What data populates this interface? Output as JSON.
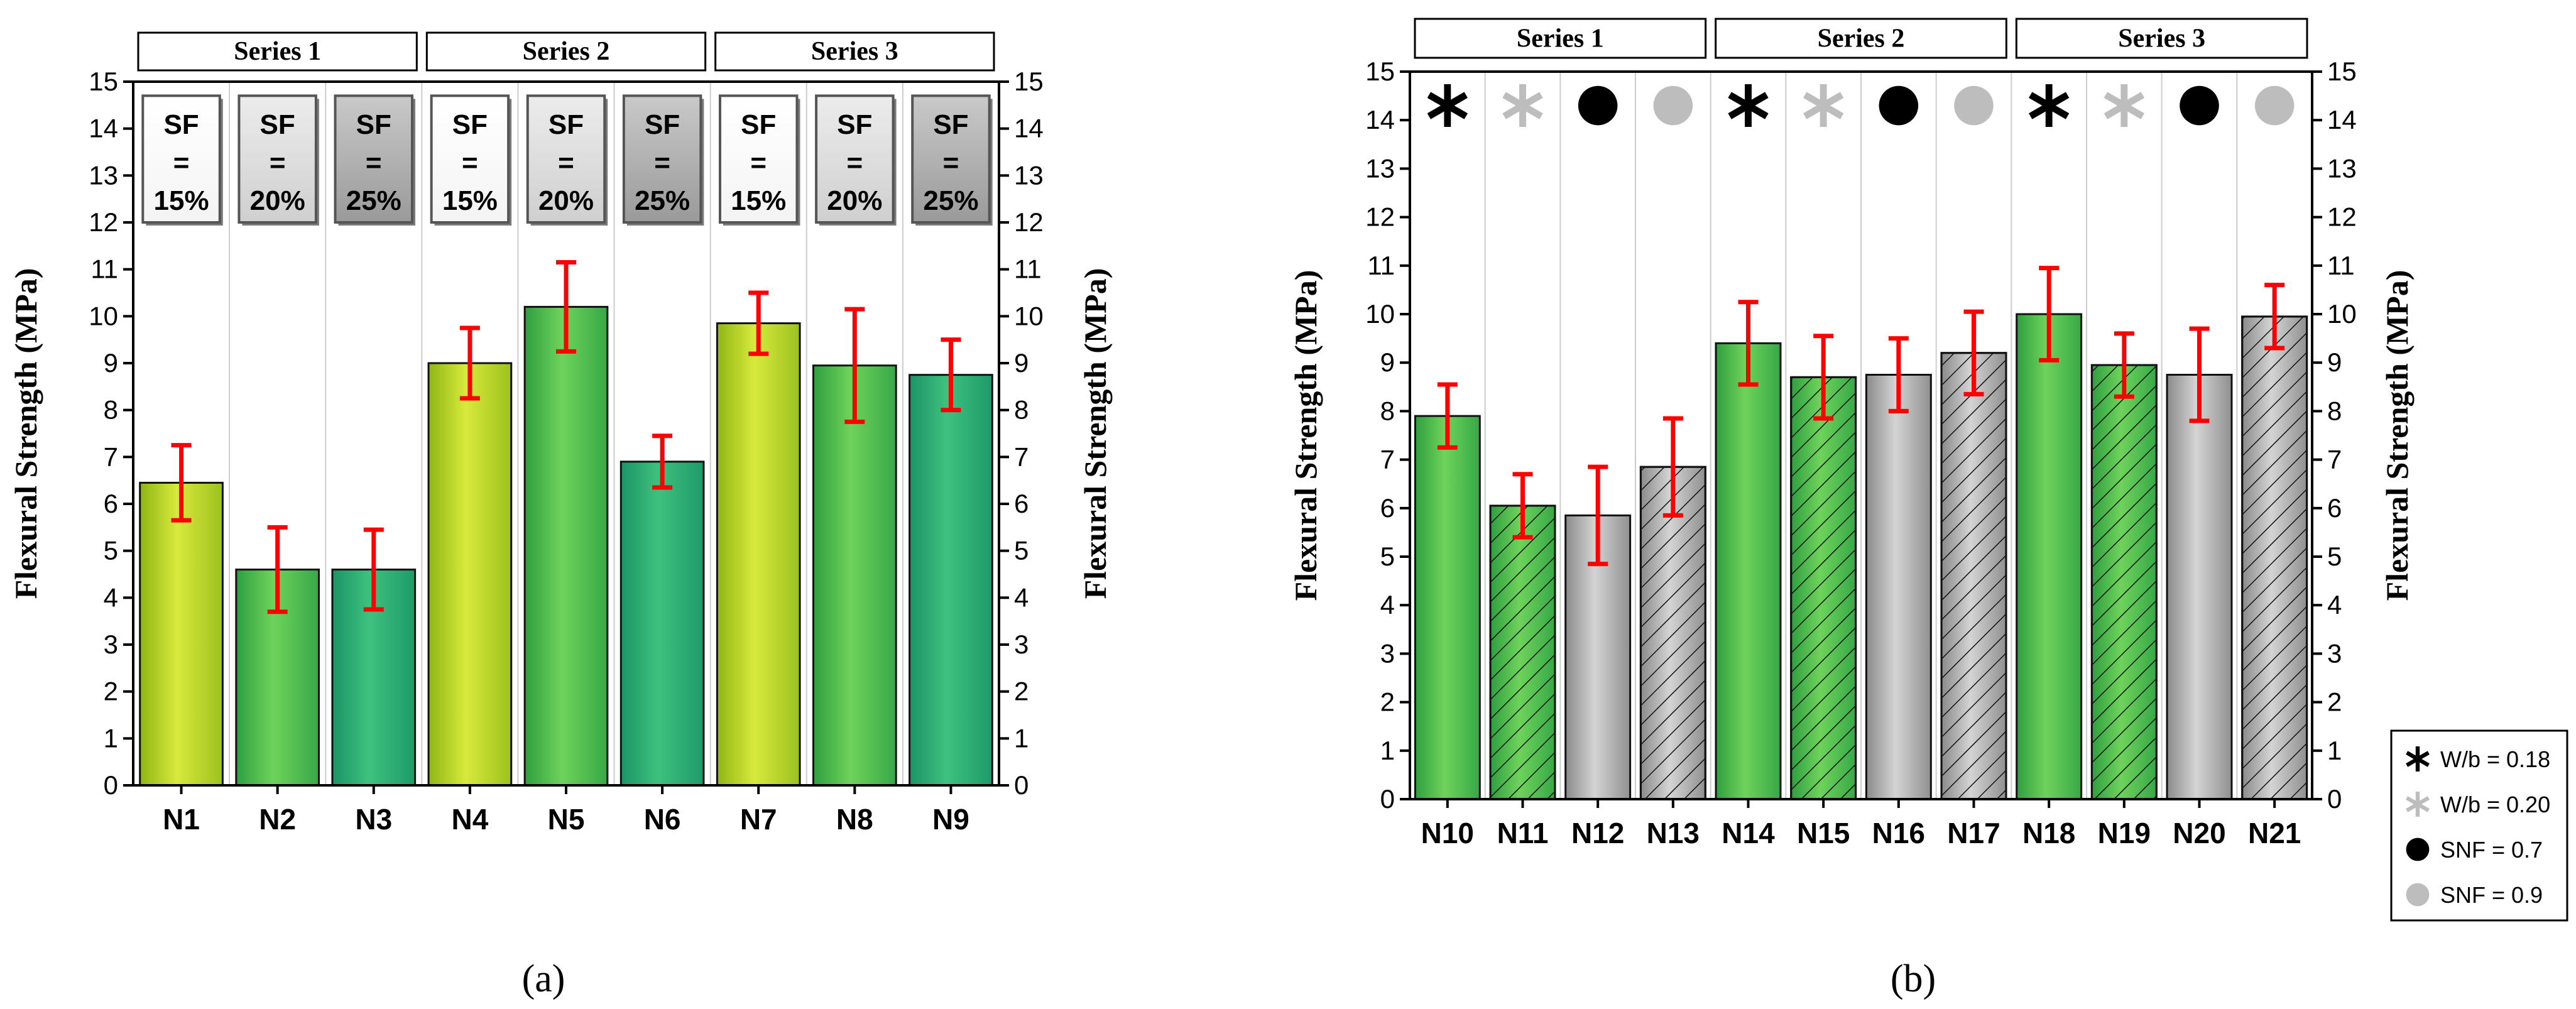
{
  "chart_data": [
    {
      "type": "bar",
      "panel_label": "(a)",
      "categories": [
        "N1",
        "N2",
        "N3",
        "N4",
        "N5",
        "N6",
        "N7",
        "N8",
        "N9"
      ],
      "values": [
        6.45,
        4.6,
        4.6,
        9.0,
        10.2,
        6.9,
        9.85,
        8.95,
        8.75
      ],
      "errors": [
        0.8,
        0.9,
        0.85,
        0.75,
        0.95,
        0.55,
        0.65,
        1.2,
        0.75
      ],
      "fills": [
        "yellow",
        "green",
        "teal",
        "yellow",
        "green",
        "teal",
        "yellow",
        "green",
        "teal"
      ],
      "ylabel": "Flexural Strength (MPa)",
      "ylabel_right": "Flexural Strength (MPa)",
      "ylim": [
        0,
        15
      ],
      "yticks": [
        0,
        1,
        2,
        3,
        4,
        5,
        6,
        7,
        8,
        9,
        10,
        11,
        12,
        13,
        14,
        15
      ],
      "series_groups": [
        {
          "label": "Series 1",
          "first": 0,
          "last": 2
        },
        {
          "label": "Series 2",
          "first": 3,
          "last": 5
        },
        {
          "label": "Series 3",
          "first": 6,
          "last": 8
        }
      ],
      "sf_boxes": [
        {
          "sf": "SF",
          "eq": "=",
          "pct": "15%",
          "shade": "white"
        },
        {
          "sf": "SF",
          "eq": "=",
          "pct": "20%",
          "shade": "light"
        },
        {
          "sf": "SF",
          "eq": "=",
          "pct": "25%",
          "shade": "dark"
        },
        {
          "sf": "SF",
          "eq": "=",
          "pct": "15%",
          "shade": "white"
        },
        {
          "sf": "SF",
          "eq": "=",
          "pct": "20%",
          "shade": "light"
        },
        {
          "sf": "SF",
          "eq": "=",
          "pct": "25%",
          "shade": "dark"
        },
        {
          "sf": "SF",
          "eq": "=",
          "pct": "15%",
          "shade": "white"
        },
        {
          "sf": "SF",
          "eq": "=",
          "pct": "20%",
          "shade": "light"
        },
        {
          "sf": "SF",
          "eq": "=",
          "pct": "25%",
          "shade": "dark"
        }
      ]
    },
    {
      "type": "bar",
      "panel_label": "(b)",
      "categories": [
        "N10",
        "N11",
        "N12",
        "N13",
        "N14",
        "N15",
        "N16",
        "N17",
        "N18",
        "N19",
        "N20",
        "N21"
      ],
      "values": [
        7.9,
        6.05,
        5.85,
        6.85,
        9.4,
        8.7,
        8.75,
        9.2,
        10.0,
        8.95,
        8.75,
        9.95
      ],
      "errors": [
        0.65,
        0.65,
        1.0,
        1.0,
        0.85,
        0.85,
        0.75,
        0.85,
        0.95,
        0.65,
        0.95,
        0.65
      ],
      "fills": [
        "green",
        "green-hatch",
        "gray",
        "gray-hatch",
        "green",
        "green-hatch",
        "gray",
        "gray-hatch",
        "green",
        "green-hatch",
        "gray",
        "gray-hatch"
      ],
      "markers": [
        "star-black",
        "star-gray",
        "dot-black",
        "dot-gray",
        "star-black",
        "star-gray",
        "dot-black",
        "dot-gray",
        "star-black",
        "star-gray",
        "dot-black",
        "dot-gray"
      ],
      "ylabel": "Flexural Strength (MPa)",
      "ylabel_right": "Flexural Strength (MPa)",
      "ylim": [
        0,
        15
      ],
      "yticks": [
        0,
        1,
        2,
        3,
        4,
        5,
        6,
        7,
        8,
        9,
        10,
        11,
        12,
        13,
        14,
        15
      ],
      "series_groups": [
        {
          "label": "Series 1",
          "first": 0,
          "last": 3
        },
        {
          "label": "Series 2",
          "first": 4,
          "last": 7
        },
        {
          "label": "Series 3",
          "first": 8,
          "last": 11
        }
      ],
      "legend": [
        {
          "marker": "star-black",
          "label": "W/b = 0.18"
        },
        {
          "marker": "star-gray",
          "label": "W/b = 0.20"
        },
        {
          "marker": "dot-black",
          "label": "SNF = 0.7"
        },
        {
          "marker": "dot-gray",
          "label": "SNF = 0.9"
        }
      ]
    }
  ],
  "colors": {
    "error_bar": "#ff0000",
    "axis": "#000000",
    "grid": "#cccccc",
    "yellow_light": "#d8ea3c",
    "yellow_dark": "#8fb515",
    "green_light": "#6ed35b",
    "green_dark": "#2f9e3f",
    "teal_light": "#3ec17e",
    "teal_dark": "#1c9466",
    "gray_light": "#cfcfcf",
    "gray_dark": "#8a8a8a",
    "marker_gray": "#bdbdbd"
  }
}
